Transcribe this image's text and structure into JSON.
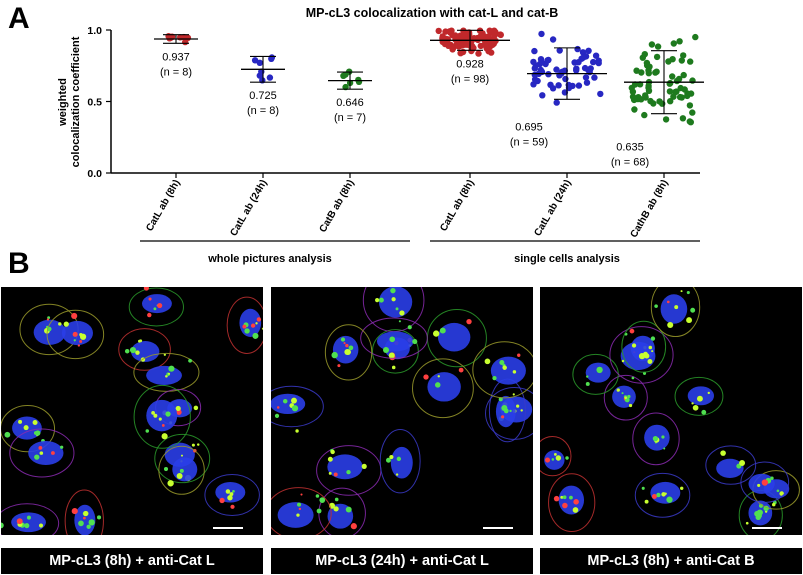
{
  "panels": {
    "a": "A",
    "b": "B"
  },
  "colors": {
    "red": "#c0282b",
    "blue": "#2727c2",
    "green": "#1e7a1e"
  },
  "chart_data": {
    "type": "scatter",
    "title": "MP-cL3 colocalization with cat-L and cat-B",
    "ylabel_line1": "weighted",
    "ylabel_line2": "colocalization coefficient",
    "ylim": [
      0.0,
      1.0
    ],
    "yticks": [
      "0.0",
      "0.5",
      "1.0"
    ],
    "yticks_values": [
      0.0,
      0.5,
      1.0
    ],
    "groups": [
      "whole pictures analysis",
      "single cells analysis"
    ],
    "categories": [
      {
        "label": "CatL ab (8h)",
        "color": "red",
        "mean": 0.937,
        "sd": 0.03,
        "mean_label": "0.937",
        "n_label": "(n = 8)",
        "n": 8
      },
      {
        "label": "CatL ab (24h)",
        "color": "blue",
        "mean": 0.725,
        "sd": 0.09,
        "mean_label": "0.725",
        "n_label": "(n = 8)",
        "n": 8
      },
      {
        "label": "CatB ab (8h)",
        "color": "green",
        "mean": 0.646,
        "sd": 0.06,
        "mean_label": "0.646",
        "n_label": "(n = 7)",
        "n": 7
      },
      {
        "label": "CatL ab (8h)",
        "color": "red",
        "mean": 0.928,
        "sd": 0.07,
        "mean_label": "0.928",
        "n_label": "(n = 98)",
        "n": 98
      },
      {
        "label": "CatL ab (24h)",
        "color": "blue",
        "mean": 0.695,
        "sd": 0.18,
        "mean_label": "0.695",
        "n_label": "(n = 59)",
        "n": 59
      },
      {
        "label": "CathB ab (8h)",
        "color": "green",
        "mean": 0.635,
        "sd": 0.22,
        "mean_label": "0.635",
        "n_label": "(n = 68)",
        "n": 68
      }
    ]
  },
  "images": [
    {
      "caption": "MP-cL3 (8h) + anti-Cat L"
    },
    {
      "caption": "MP-cL3 (24h) + anti-Cat L"
    },
    {
      "caption": "MP-cL3 (8h) + anti-Cat B"
    }
  ]
}
